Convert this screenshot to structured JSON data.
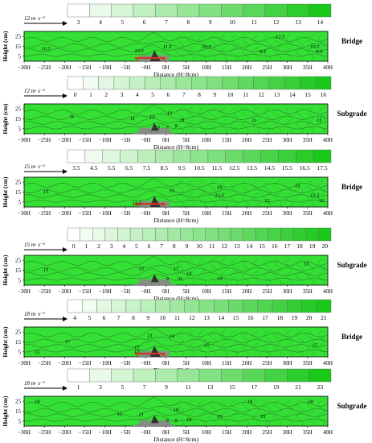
{
  "figure": {
    "xlabel": "Distance (H=8cm)",
    "ylabel": "Height (cm)",
    "x_ticks": [
      "−30H",
      "−25H",
      "−20H",
      "−15H",
      "−10H",
      "−5H",
      "−0H",
      "0H",
      "5H",
      "10H",
      "15H",
      "20H",
      "25H",
      "30H",
      "35H",
      "40H"
    ],
    "y_ticks": [
      "25",
      "15",
      "5"
    ],
    "colors": {
      "plot_green": "#33e033",
      "legend_high": "#19c819",
      "legend_low": "#ffffff",
      "contour": "#2b4a2b",
      "obstacle": "#888888",
      "structure_red": "#e03020",
      "bridge_dark": "#333333"
    }
  },
  "chart_data": [
    {
      "type": "heatmap",
      "panel": "a",
      "wind_label": "12 m· s⁻¹",
      "side_label": "Bridge",
      "legend_ticks": [
        "3",
        "4",
        "5",
        "6",
        "7",
        "8",
        "9",
        "10",
        "11",
        "12",
        "13",
        "14"
      ],
      "contour_labels": [
        {
          "text": "10.5",
          "x": -25,
          "y": 13
        },
        {
          "text": "10.5",
          "x": -3.5,
          "y": 11
        },
        {
          "text": "11.5",
          "x": 3,
          "y": 15
        },
        {
          "text": "10.5",
          "x": 12,
          "y": 15
        },
        {
          "text": "12.5",
          "x": 29,
          "y": 25
        },
        {
          "text": "9.5",
          "x": 25,
          "y": 10
        },
        {
          "text": "10.5",
          "x": 37,
          "y": 15
        },
        {
          "text": "9.5",
          "x": 38,
          "y": 10
        }
      ]
    },
    {
      "type": "heatmap",
      "panel": "b",
      "wind_label": "12 m· s⁻¹",
      "side_label": "Subgrade",
      "legend_ticks": [
        "0",
        "1",
        "2",
        "3",
        "4",
        "5",
        "6",
        "7",
        "8",
        "9",
        "10",
        "11",
        "12",
        "13",
        "14",
        "15",
        "16"
      ],
      "contour_labels": [
        {
          "text": "11",
          "x": -19,
          "y": 18
        },
        {
          "text": "11",
          "x": -5,
          "y": 16
        },
        {
          "text": "13",
          "x": -0.5,
          "y": 17
        },
        {
          "text": "13",
          "x": 3.5,
          "y": 21
        },
        {
          "text": "5",
          "x": 1,
          "y": 7
        },
        {
          "text": "7",
          "x": 3,
          "y": 7
        },
        {
          "text": "9",
          "x": 5,
          "y": 8
        },
        {
          "text": "11",
          "x": 6.5,
          "y": 14
        },
        {
          "text": "11",
          "x": 23,
          "y": 14
        },
        {
          "text": "11",
          "x": 38,
          "y": 14
        }
      ]
    },
    {
      "type": "heatmap",
      "panel": "c",
      "wind_label": "15 m· s⁻¹",
      "side_label": "Bridge",
      "legend_ticks": [
        "3.5",
        "4.5",
        "5.5",
        "6.5",
        "7.5",
        "8.5",
        "9.5",
        "10.5",
        "11.5",
        "12.5",
        "13.5",
        "14.5",
        "15.5",
        "16.5",
        "17.5"
      ],
      "contour_labels": [
        {
          "text": "15",
          "x": -25,
          "y": 16
        },
        {
          "text": "13.5",
          "x": -4,
          "y": 4
        },
        {
          "text": "15",
          "x": 4,
          "y": 17
        },
        {
          "text": "15",
          "x": 15,
          "y": 20
        },
        {
          "text": "13.5",
          "x": 15,
          "y": 12
        },
        {
          "text": "12",
          "x": 26,
          "y": 7
        },
        {
          "text": "15",
          "x": 33,
          "y": 22
        },
        {
          "text": "13.5",
          "x": 37,
          "y": 12
        },
        {
          "text": "12",
          "x": 38.5,
          "y": 7
        }
      ]
    },
    {
      "type": "heatmap",
      "panel": "d",
      "wind_label": "15 m· s⁻¹",
      "side_label": "Subgrade",
      "legend_ticks": [
        "0",
        "1",
        "2",
        "3",
        "4",
        "5",
        "6",
        "7",
        "8",
        "9",
        "10",
        "11",
        "12",
        "13",
        "14",
        "15",
        "16",
        "17",
        "18",
        "19",
        "20"
      ],
      "contour_labels": [
        {
          "text": "15",
          "x": -25,
          "y": 16
        },
        {
          "text": "15",
          "x": -3,
          "y": 17
        },
        {
          "text": "17",
          "x": 5,
          "y": 17
        },
        {
          "text": "13",
          "x": 8,
          "y": 12
        },
        {
          "text": "9",
          "x": 3,
          "y": 7
        },
        {
          "text": "11",
          "x": 6,
          "y": 7
        },
        {
          "text": "13",
          "x": 15,
          "y": 7
        },
        {
          "text": "15",
          "x": 35,
          "y": 22
        }
      ]
    },
    {
      "type": "heatmap",
      "panel": "e",
      "wind_label": "18 m· s⁻¹",
      "side_label": "Bridge",
      "legend_ticks": [
        "4",
        "5",
        "6",
        "7",
        "8",
        "9",
        "10",
        "11",
        "12",
        "13",
        "14",
        "15",
        "16",
        "17",
        "18",
        "19",
        "20",
        "21"
      ],
      "contour_labels": [
        {
          "text": "17",
          "x": -20,
          "y": 16
        },
        {
          "text": "21",
          "x": -1,
          "y": 22
        },
        {
          "text": "19",
          "x": 4,
          "y": 21
        },
        {
          "text": "15",
          "x": -27,
          "y": 5
        },
        {
          "text": "17",
          "x": -4,
          "y": 10
        },
        {
          "text": "15",
          "x": -4,
          "y": 6
        },
        {
          "text": "15",
          "x": 12,
          "y": 12
        },
        {
          "text": "15",
          "x": 37,
          "y": 12
        }
      ]
    },
    {
      "type": "heatmap",
      "panel": "f",
      "wind_label": "18 m· s⁻¹",
      "side_label": "Subgrade",
      "legend_ticks": [
        "1",
        "3",
        "5",
        "7",
        "9",
        "11",
        "13",
        "15",
        "17",
        "19",
        "21",
        "23"
      ],
      "contour_labels": [
        {
          "text": "18",
          "x": -27,
          "y": 25
        },
        {
          "text": "15",
          "x": -8,
          "y": 12
        },
        {
          "text": "21",
          "x": -3,
          "y": 12
        },
        {
          "text": "18",
          "x": 5,
          "y": 17
        },
        {
          "text": "12",
          "x": 8,
          "y": 7
        },
        {
          "text": "6",
          "x": 3,
          "y": 6
        },
        {
          "text": "9",
          "x": 5,
          "y": 6
        },
        {
          "text": "15",
          "x": 15,
          "y": 10
        },
        {
          "text": "18",
          "x": 22,
          "y": 25
        },
        {
          "text": "18",
          "x": 36,
          "y": 25
        },
        {
          "text": "15",
          "x": 25,
          "y": 10
        }
      ]
    }
  ]
}
